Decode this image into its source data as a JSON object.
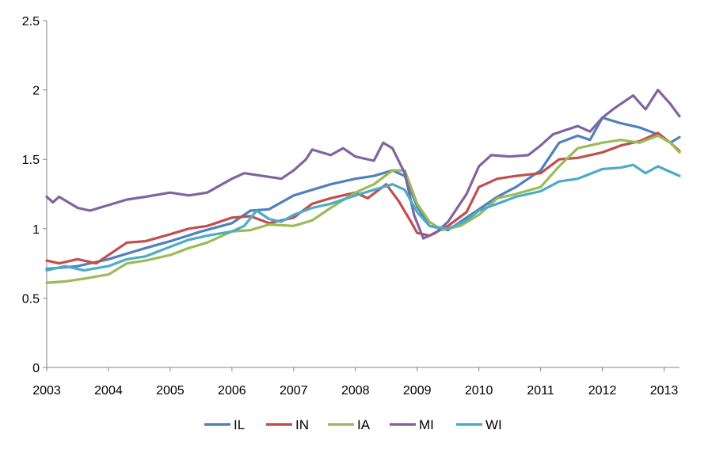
{
  "chart_data": {
    "type": "line",
    "title": "",
    "xlabel": "",
    "ylabel": "",
    "xlim": [
      2003,
      2013.25
    ],
    "ylim": [
      0,
      2.5
    ],
    "yticks": [
      0,
      0.5,
      1,
      1.5,
      2,
      2.5
    ],
    "ytick_labels": [
      "0",
      "0.5",
      "1",
      "1.5",
      "2",
      "2.5"
    ],
    "xticks": [
      2003,
      2004,
      2005,
      2006,
      2007,
      2008,
      2009,
      2010,
      2011,
      2012,
      2013
    ],
    "xtick_labels": [
      "2003",
      "2004",
      "2005",
      "2006",
      "2007",
      "2008",
      "2009",
      "2010",
      "2011",
      "2012",
      "2013"
    ],
    "grid": {
      "horizontal": false,
      "vertical": false
    },
    "legend": "bottom",
    "series": [
      {
        "name": "IL",
        "color": "#4f81bd",
        "points": [
          [
            2003.0,
            0.71
          ],
          [
            2003.5,
            0.73
          ],
          [
            2004.0,
            0.78
          ],
          [
            2004.3,
            0.82
          ],
          [
            2004.6,
            0.86
          ],
          [
            2005.0,
            0.91
          ],
          [
            2005.5,
            0.98
          ],
          [
            2006.0,
            1.04
          ],
          [
            2006.3,
            1.13
          ],
          [
            2006.6,
            1.14
          ],
          [
            2007.0,
            1.24
          ],
          [
            2007.3,
            1.28
          ],
          [
            2007.6,
            1.32
          ],
          [
            2008.0,
            1.36
          ],
          [
            2008.3,
            1.38
          ],
          [
            2008.6,
            1.42
          ],
          [
            2008.8,
            1.38
          ],
          [
            2009.0,
            1.16
          ],
          [
            2009.2,
            1.02
          ],
          [
            2009.5,
            0.99
          ],
          [
            2009.8,
            1.08
          ],
          [
            2010.0,
            1.14
          ],
          [
            2010.3,
            1.23
          ],
          [
            2010.6,
            1.3
          ],
          [
            2011.0,
            1.42
          ],
          [
            2011.3,
            1.62
          ],
          [
            2011.6,
            1.67
          ],
          [
            2011.8,
            1.64
          ],
          [
            2012.0,
            1.8
          ],
          [
            2012.3,
            1.76
          ],
          [
            2012.6,
            1.73
          ],
          [
            2012.9,
            1.68
          ],
          [
            2013.1,
            1.62
          ],
          [
            2013.25,
            1.66
          ]
        ]
      },
      {
        "name": "IN",
        "color": "#c0504d",
        "points": [
          [
            2003.0,
            0.77
          ],
          [
            2003.2,
            0.75
          ],
          [
            2003.5,
            0.78
          ],
          [
            2003.8,
            0.75
          ],
          [
            2004.0,
            0.81
          ],
          [
            2004.3,
            0.9
          ],
          [
            2004.6,
            0.91
          ],
          [
            2005.0,
            0.96
          ],
          [
            2005.3,
            1.0
          ],
          [
            2005.6,
            1.02
          ],
          [
            2006.0,
            1.08
          ],
          [
            2006.3,
            1.09
          ],
          [
            2006.6,
            1.04
          ],
          [
            2007.0,
            1.08
          ],
          [
            2007.3,
            1.18
          ],
          [
            2007.6,
            1.22
          ],
          [
            2008.0,
            1.26
          ],
          [
            2008.2,
            1.22
          ],
          [
            2008.5,
            1.32
          ],
          [
            2008.7,
            1.2
          ],
          [
            2008.9,
            1.05
          ],
          [
            2009.0,
            0.97
          ],
          [
            2009.2,
            0.95
          ],
          [
            2009.5,
            1.02
          ],
          [
            2009.8,
            1.12
          ],
          [
            2010.0,
            1.3
          ],
          [
            2010.3,
            1.36
          ],
          [
            2010.6,
            1.38
          ],
          [
            2011.0,
            1.4
          ],
          [
            2011.3,
            1.5
          ],
          [
            2011.6,
            1.51
          ],
          [
            2012.0,
            1.55
          ],
          [
            2012.3,
            1.6
          ],
          [
            2012.6,
            1.63
          ],
          [
            2012.9,
            1.69
          ],
          [
            2013.1,
            1.62
          ],
          [
            2013.25,
            1.56
          ]
        ]
      },
      {
        "name": "IA",
        "color": "#9bbb59",
        "points": [
          [
            2003.0,
            0.61
          ],
          [
            2003.3,
            0.62
          ],
          [
            2003.6,
            0.64
          ],
          [
            2004.0,
            0.67
          ],
          [
            2004.3,
            0.75
          ],
          [
            2004.6,
            0.77
          ],
          [
            2005.0,
            0.81
          ],
          [
            2005.3,
            0.86
          ],
          [
            2005.6,
            0.9
          ],
          [
            2006.0,
            0.98
          ],
          [
            2006.3,
            0.99
          ],
          [
            2006.6,
            1.03
          ],
          [
            2007.0,
            1.02
          ],
          [
            2007.3,
            1.06
          ],
          [
            2007.6,
            1.15
          ],
          [
            2008.0,
            1.26
          ],
          [
            2008.3,
            1.32
          ],
          [
            2008.6,
            1.42
          ],
          [
            2008.8,
            1.42
          ],
          [
            2009.0,
            1.18
          ],
          [
            2009.2,
            1.05
          ],
          [
            2009.4,
            0.99
          ],
          [
            2009.7,
            1.02
          ],
          [
            2010.0,
            1.1
          ],
          [
            2010.3,
            1.22
          ],
          [
            2010.6,
            1.25
          ],
          [
            2011.0,
            1.3
          ],
          [
            2011.3,
            1.45
          ],
          [
            2011.6,
            1.58
          ],
          [
            2011.8,
            1.6
          ],
          [
            2012.0,
            1.62
          ],
          [
            2012.3,
            1.64
          ],
          [
            2012.6,
            1.62
          ],
          [
            2012.9,
            1.67
          ],
          [
            2013.1,
            1.62
          ],
          [
            2013.25,
            1.55
          ]
        ]
      },
      {
        "name": "MI",
        "color": "#8064a2",
        "points": [
          [
            2003.0,
            1.23
          ],
          [
            2003.1,
            1.19
          ],
          [
            2003.2,
            1.23
          ],
          [
            2003.5,
            1.15
          ],
          [
            2003.7,
            1.13
          ],
          [
            2004.0,
            1.17
          ],
          [
            2004.3,
            1.21
          ],
          [
            2004.6,
            1.23
          ],
          [
            2005.0,
            1.26
          ],
          [
            2005.3,
            1.24
          ],
          [
            2005.6,
            1.26
          ],
          [
            2006.0,
            1.36
          ],
          [
            2006.2,
            1.4
          ],
          [
            2006.5,
            1.38
          ],
          [
            2006.8,
            1.36
          ],
          [
            2007.0,
            1.42
          ],
          [
            2007.2,
            1.5
          ],
          [
            2007.3,
            1.57
          ],
          [
            2007.6,
            1.53
          ],
          [
            2007.8,
            1.58
          ],
          [
            2008.0,
            1.52
          ],
          [
            2008.3,
            1.49
          ],
          [
            2008.45,
            1.62
          ],
          [
            2008.6,
            1.58
          ],
          [
            2008.8,
            1.4
          ],
          [
            2008.95,
            1.1
          ],
          [
            2009.1,
            0.93
          ],
          [
            2009.3,
            0.97
          ],
          [
            2009.5,
            1.05
          ],
          [
            2009.8,
            1.25
          ],
          [
            2010.0,
            1.45
          ],
          [
            2010.2,
            1.53
          ],
          [
            2010.5,
            1.52
          ],
          [
            2010.8,
            1.53
          ],
          [
            2011.0,
            1.6
          ],
          [
            2011.2,
            1.68
          ],
          [
            2011.4,
            1.71
          ],
          [
            2011.6,
            1.74
          ],
          [
            2011.8,
            1.7
          ],
          [
            2012.0,
            1.8
          ],
          [
            2012.2,
            1.87
          ],
          [
            2012.5,
            1.96
          ],
          [
            2012.7,
            1.86
          ],
          [
            2012.9,
            2.0
          ],
          [
            2013.1,
            1.9
          ],
          [
            2013.25,
            1.81
          ]
        ]
      },
      {
        "name": "WI",
        "color": "#4bacc6",
        "points": [
          [
            2003.0,
            0.7
          ],
          [
            2003.3,
            0.73
          ],
          [
            2003.6,
            0.7
          ],
          [
            2004.0,
            0.73
          ],
          [
            2004.3,
            0.78
          ],
          [
            2004.6,
            0.8
          ],
          [
            2005.0,
            0.87
          ],
          [
            2005.3,
            0.92
          ],
          [
            2005.6,
            0.95
          ],
          [
            2006.0,
            0.98
          ],
          [
            2006.2,
            1.02
          ],
          [
            2006.4,
            1.13
          ],
          [
            2006.6,
            1.07
          ],
          [
            2006.8,
            1.05
          ],
          [
            2007.0,
            1.1
          ],
          [
            2007.3,
            1.15
          ],
          [
            2007.6,
            1.18
          ],
          [
            2008.0,
            1.24
          ],
          [
            2008.3,
            1.28
          ],
          [
            2008.6,
            1.32
          ],
          [
            2008.8,
            1.28
          ],
          [
            2009.0,
            1.12
          ],
          [
            2009.2,
            1.02
          ],
          [
            2009.5,
            1.0
          ],
          [
            2009.8,
            1.06
          ],
          [
            2010.0,
            1.13
          ],
          [
            2010.3,
            1.18
          ],
          [
            2010.6,
            1.23
          ],
          [
            2011.0,
            1.27
          ],
          [
            2011.3,
            1.34
          ],
          [
            2011.6,
            1.36
          ],
          [
            2012.0,
            1.43
          ],
          [
            2012.3,
            1.44
          ],
          [
            2012.5,
            1.46
          ],
          [
            2012.7,
            1.4
          ],
          [
            2012.9,
            1.45
          ],
          [
            2013.1,
            1.41
          ],
          [
            2013.25,
            1.38
          ]
        ]
      }
    ]
  }
}
